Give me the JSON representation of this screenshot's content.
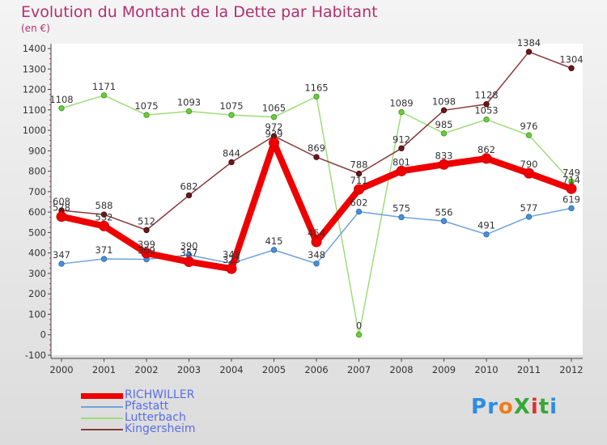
{
  "title": "Evolution du Montant de la Dette par Habitant",
  "subtitle": "(en €)",
  "logo": {
    "text": "ProXiti",
    "colors": [
      "#2a8ee0",
      "#2a8ee0",
      "#ef7d1a",
      "#36a836",
      "#e03030",
      "#36a836",
      "#2a8ee0"
    ]
  },
  "chart_data": {
    "type": "line",
    "categories": [
      "2000",
      "2001",
      "2002",
      "2003",
      "2004",
      "2005",
      "2006",
      "2007",
      "2008",
      "2009",
      "2010",
      "2011",
      "2012"
    ],
    "ylim": [
      -100,
      1400
    ],
    "yticks": [
      -100,
      0,
      100,
      200,
      300,
      400,
      500,
      600,
      700,
      800,
      900,
      1000,
      1100,
      1200,
      1300,
      1400
    ],
    "grid": false,
    "legend_position": "bottom-left",
    "series": [
      {
        "name": "RICHWILLER",
        "color": "#ee0000",
        "stroke_width": 8,
        "marker_r": 6,
        "marker_fill": "#ee0000",
        "marker_stroke": "#cc0000",
        "values": [
          578,
          532,
          399,
          357,
          323,
          939,
          454,
          711,
          801,
          833,
          862,
          790,
          714
        ]
      },
      {
        "name": "Pfastatt",
        "color": "#6fa3d8",
        "stroke_width": 1.5,
        "marker_r": 3.2,
        "marker_fill": "#4d8fd6",
        "marker_stroke": "#2f6fb8",
        "values": [
          347,
          371,
          369,
          390,
          349,
          415,
          348,
          602,
          575,
          556,
          491,
          577,
          619
        ]
      },
      {
        "name": "Lutterbach",
        "color": "#9edc7a",
        "stroke_width": 1.5,
        "marker_r": 3.2,
        "marker_fill": "#6ccc3c",
        "marker_stroke": "#4aa02a",
        "values": [
          1108,
          1171,
          1075,
          1093,
          1075,
          1065,
          1165,
          0,
          1089,
          985,
          1053,
          976,
          749
        ]
      },
      {
        "name": "Kingersheim",
        "color": "#8a3a3a",
        "stroke_width": 1.5,
        "marker_r": 3.2,
        "marker_fill": "#6a1a1a",
        "marker_stroke": "#4a0a0a",
        "values": [
          608,
          588,
          512,
          682,
          844,
          972,
          869,
          788,
          912,
          1098,
          1128,
          1384,
          1304
        ]
      }
    ]
  }
}
